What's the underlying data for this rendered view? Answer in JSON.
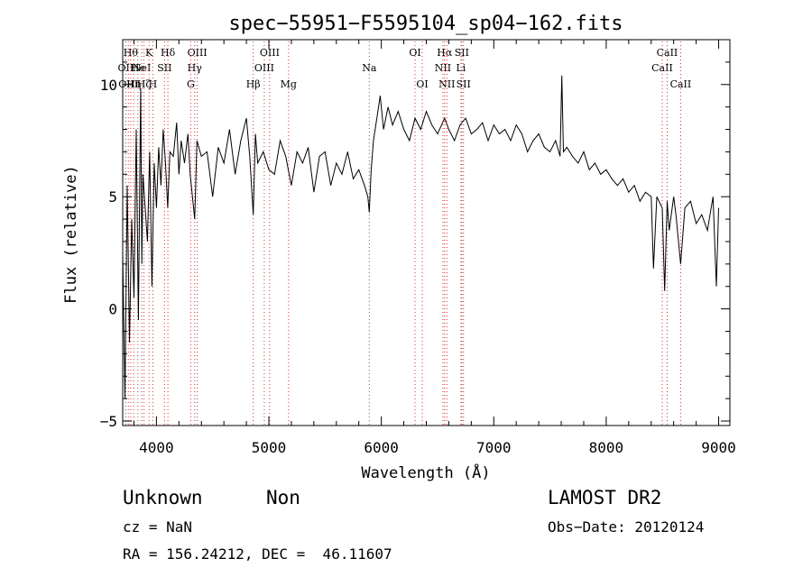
{
  "chart_data": {
    "type": "line",
    "title": "spec−55951−F5595104_sp04−162.fits",
    "xlabel": "Wavelength (Å)",
    "ylabel": "Flux (relative)",
    "xlim": [
      3700,
      9100
    ],
    "ylim": [
      -5.2,
      12.0
    ],
    "xticks": [
      4000,
      5000,
      6000,
      7000,
      8000,
      9000
    ],
    "yticks": [
      -5,
      0,
      5,
      10
    ],
    "series": [
      {
        "x": [
          3700,
          3720,
          3740,
          3760,
          3780,
          3800,
          3820,
          3840,
          3860,
          3870,
          3880,
          3900,
          3920,
          3940,
          3960,
          3980,
          4000,
          4020,
          4040,
          4060,
          4080,
          4100,
          4120,
          4150,
          4180,
          4200,
          4220,
          4250,
          4280,
          4300,
          4320,
          4340,
          4360,
          4400,
          4450,
          4500,
          4550,
          4600,
          4650,
          4700,
          4750,
          4800,
          4830,
          4861,
          4880,
          4900,
          4950,
          5000,
          5050,
          5100,
          5150,
          5200,
          5250,
          5300,
          5350,
          5400,
          5450,
          5500,
          5550,
          5600,
          5650,
          5700,
          5750,
          5800,
          5850,
          5880,
          5893,
          5910,
          5930,
          5960,
          5990,
          6020,
          6060,
          6100,
          6150,
          6200,
          6250,
          6300,
          6350,
          6400,
          6450,
          6500,
          6563,
          6600,
          6650,
          6700,
          6750,
          6800,
          6850,
          6900,
          6950,
          7000,
          7050,
          7100,
          7150,
          7200,
          7250,
          7300,
          7350,
          7400,
          7450,
          7500,
          7550,
          7590,
          7605,
          7620,
          7650,
          7700,
          7750,
          7800,
          7850,
          7900,
          7950,
          8000,
          8050,
          8100,
          8150,
          8200,
          8250,
          8300,
          8350,
          8400,
          8420,
          8450,
          8498,
          8520,
          8542,
          8560,
          8600,
          8620,
          8662,
          8700,
          8750,
          8800,
          8850,
          8900,
          8950,
          8980,
          9000
        ],
        "y": [
          2.5,
          -4.0,
          5.5,
          -1.5,
          4.0,
          0.5,
          8.0,
          -0.5,
          9.8,
          2.0,
          6.0,
          4.5,
          3.0,
          7.0,
          1.0,
          6.5,
          4.5,
          7.2,
          5.5,
          8.0,
          6.5,
          4.5,
          7.0,
          6.8,
          8.3,
          6.0,
          7.5,
          6.5,
          7.8,
          6.0,
          5.0,
          4.0,
          7.5,
          6.8,
          7.0,
          5.0,
          7.2,
          6.5,
          8.0,
          6.0,
          7.5,
          8.5,
          6.8,
          4.2,
          7.8,
          6.5,
          7.0,
          6.2,
          6.0,
          7.5,
          6.8,
          5.5,
          7.0,
          6.5,
          7.2,
          5.2,
          6.8,
          7.0,
          5.5,
          6.5,
          6.0,
          7.0,
          5.8,
          6.2,
          5.5,
          5.0,
          4.3,
          6.2,
          7.5,
          8.5,
          9.5,
          8.0,
          9.0,
          8.2,
          8.8,
          8.0,
          7.5,
          8.5,
          8.0,
          8.8,
          8.2,
          7.8,
          8.5,
          8.0,
          7.5,
          8.2,
          8.5,
          7.8,
          8.0,
          8.3,
          7.5,
          8.2,
          7.8,
          8.0,
          7.5,
          8.2,
          7.8,
          7.0,
          7.5,
          7.8,
          7.2,
          7.0,
          7.5,
          6.8,
          10.4,
          7.0,
          7.2,
          6.8,
          6.5,
          7.0,
          6.2,
          6.5,
          6.0,
          6.2,
          5.8,
          5.5,
          5.8,
          5.2,
          5.5,
          4.8,
          5.2,
          5.0,
          1.8,
          5.0,
          4.5,
          0.8,
          4.8,
          3.5,
          5.0,
          4.2,
          2.0,
          4.5,
          4.8,
          3.8,
          4.2,
          3.5,
          5.0,
          1.0,
          4.5
        ]
      }
    ],
    "lines": [
      {
        "wavelength": 3727,
        "label": "OII",
        "row": 1
      },
      {
        "wavelength": 3750,
        "label": "OIII",
        "row": 2
      },
      {
        "wavelength": 3771,
        "label": "Hθ",
        "row": 0
      },
      {
        "wavelength": 3798,
        "label": "Hη",
        "row": 2
      },
      {
        "wavelength": 3835,
        "label": "He",
        "row": 1
      },
      {
        "wavelength": 3869,
        "label": "NeI",
        "row": 1
      },
      {
        "wavelength": 3889,
        "label": "Hζ",
        "row": 2
      },
      {
        "wavelength": 3934,
        "label": "K",
        "row": 0
      },
      {
        "wavelength": 3968,
        "label": "H",
        "row": 2
      },
      {
        "wavelength": 4072,
        "label": "SII",
        "row": 1
      },
      {
        "wavelength": 4102,
        "label": "Hδ",
        "row": 0
      },
      {
        "wavelength": 4305,
        "label": "G",
        "row": 2
      },
      {
        "wavelength": 4340,
        "label": "Hγ",
        "row": 1
      },
      {
        "wavelength": 4363,
        "label": "OIII",
        "row": 0
      },
      {
        "wavelength": 4861,
        "label": "Hβ",
        "row": 2
      },
      {
        "wavelength": 4959,
        "label": "OIII",
        "row": 1
      },
      {
        "wavelength": 5007,
        "label": "OIII",
        "row": 0
      },
      {
        "wavelength": 5175,
        "label": "Mg",
        "row": 2
      },
      {
        "wavelength": 5893,
        "label": "Na",
        "row": 1
      },
      {
        "wavelength": 6300,
        "label": "OI",
        "row": 0
      },
      {
        "wavelength": 6364,
        "label": "OI",
        "row": 2
      },
      {
        "wavelength": 6548,
        "label": "NII",
        "row": 1
      },
      {
        "wavelength": 6563,
        "label": "Hα",
        "row": 0
      },
      {
        "wavelength": 6583,
        "label": "NII",
        "row": 2
      },
      {
        "wavelength": 6708,
        "label": "Li",
        "row": 1
      },
      {
        "wavelength": 6716,
        "label": "SII",
        "row": 0
      },
      {
        "wavelength": 6731,
        "label": "SII",
        "row": 2
      },
      {
        "wavelength": 8498,
        "label": "CaII",
        "row": 1
      },
      {
        "wavelength": 8542,
        "label": "CaII",
        "row": 0
      },
      {
        "wavelength": 8662,
        "label": "CaII",
        "row": 2
      }
    ]
  },
  "caption": {
    "class_label": "Unknown",
    "subclass_label": "Non",
    "survey": "LAMOST DR2",
    "cz": "cz = NaN",
    "obs_date": "Obs−Date: 20120124",
    "coords": "RA = 156.24212, DEC =  46.11607"
  }
}
